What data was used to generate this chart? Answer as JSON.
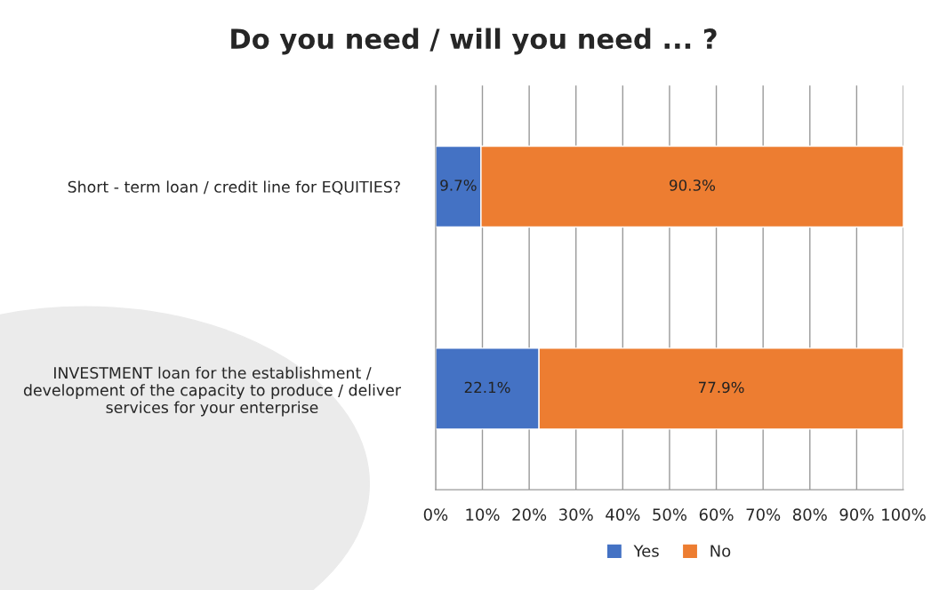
{
  "chart_data": {
    "type": "bar",
    "orientation": "horizontal",
    "stacked": true,
    "title": "Do you need / will you need ... ?",
    "categories": [
      "Short - term loan / credit line for EQUITIES?",
      "INVESTMENT loan for the establishment / development of the capacity to produce / deliver services for your enterprise"
    ],
    "series": [
      {
        "name": "Yes",
        "color": "#4472c4",
        "values": [
          9.7,
          22.1
        ],
        "value_labels": [
          "9.7%",
          "22.1%"
        ]
      },
      {
        "name": "No",
        "color": "#ed7d31",
        "values": [
          90.3,
          77.9
        ],
        "value_labels": [
          "90.3%",
          "77.9%"
        ]
      }
    ],
    "xlim": [
      0,
      100
    ],
    "xticks": [
      {
        "value": 0,
        "label": "0%"
      },
      {
        "value": 10,
        "label": "10%"
      },
      {
        "value": 20,
        "label": "20%"
      },
      {
        "value": 30,
        "label": "30%"
      },
      {
        "value": 40,
        "label": "40%"
      },
      {
        "value": 50,
        "label": "50%"
      },
      {
        "value": 60,
        "label": "60%"
      },
      {
        "value": 70,
        "label": "70%"
      },
      {
        "value": 80,
        "label": "80%"
      },
      {
        "value": 90,
        "label": "90%"
      },
      {
        "value": 100,
        "label": "100%"
      }
    ],
    "grid": "x",
    "legend": "bottom"
  }
}
